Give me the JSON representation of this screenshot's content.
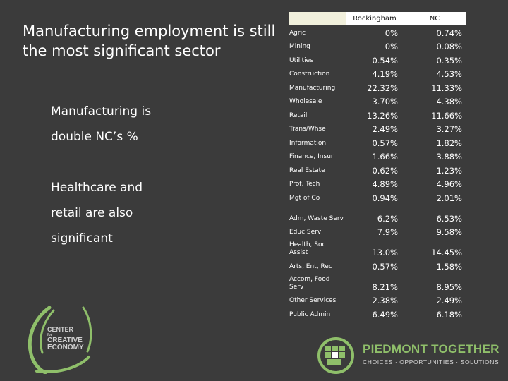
{
  "slide": {
    "title": "Manufacturing employment is still the most significant sector",
    "bullets": [
      {
        "text": "Manufacturing is double NC’s %"
      },
      {
        "text": "Healthcare and retail are also significant"
      }
    ]
  },
  "table": {
    "headers": [
      "",
      "Rockingham",
      "NC"
    ],
    "rows": [
      {
        "sector": "Agric",
        "rockingham": "0%",
        "nc": "0.74%"
      },
      {
        "sector": "Mining",
        "rockingham": "0%",
        "nc": "0.08%"
      },
      {
        "sector": "Utilities",
        "rockingham": "0.54%",
        "nc": "0.35%"
      },
      {
        "sector": "Construction",
        "rockingham": "4.19%",
        "nc": "4.53%"
      },
      {
        "sector": "Manufacturing",
        "rockingham": "22.32%",
        "nc": "11.33%"
      },
      {
        "sector": "Wholesale",
        "rockingham": "3.70%",
        "nc": "4.38%"
      },
      {
        "sector": "Retail",
        "rockingham": "13.26%",
        "nc": "11.66%"
      },
      {
        "sector": "Trans/Whse",
        "rockingham": "2.49%",
        "nc": "3.27%"
      },
      {
        "sector": "Information",
        "rockingham": "0.57%",
        "nc": "1.82%"
      },
      {
        "sector": "Finance, Insur",
        "rockingham": "1.66%",
        "nc": "3.88%"
      },
      {
        "sector": "Real Estate",
        "rockingham": "0.62%",
        "nc": "1.23%"
      },
      {
        "sector": "Prof, Tech",
        "rockingham": "4.89%",
        "nc": "4.96%"
      },
      {
        "sector": "Mgt of Co",
        "rockingham": "0.94%",
        "nc": "2.01%"
      },
      {
        "sector": "Adm, Waste Serv",
        "rockingham": "6.2%",
        "nc": "6.53%"
      },
      {
        "sector": "Educ Serv",
        "rockingham": "7.9%",
        "nc": "9.58%"
      },
      {
        "sector": "Health, Soc Assist",
        "rockingham": "13.0%",
        "nc": "14.45%"
      },
      {
        "sector": "Arts, Ent, Rec",
        "rockingham": "0.57%",
        "nc": "1.58%"
      },
      {
        "sector": "Accom, Food Serv",
        "rockingham": "8.21%",
        "nc": "8.95%"
      },
      {
        "sector": "Other Services",
        "rockingham": "2.38%",
        "nc": "2.49%"
      },
      {
        "sector": "Public Admin",
        "rockingham": "6.49%",
        "nc": "6.18%"
      }
    ]
  },
  "logos": {
    "cce": {
      "line1": "CENTER",
      "line2": "for",
      "line3": "CREATIVE",
      "line4": "ECONOMY"
    },
    "piedmont": {
      "title": "PIEDMONT TOGETHER",
      "tagline": "CHOICES · OPPORTUNITIES · SOLUTIONS"
    }
  },
  "colors": {
    "background": "#3b3b3b",
    "accent_green": "#8fbf6a",
    "header_fill": "#f1f0dc"
  }
}
